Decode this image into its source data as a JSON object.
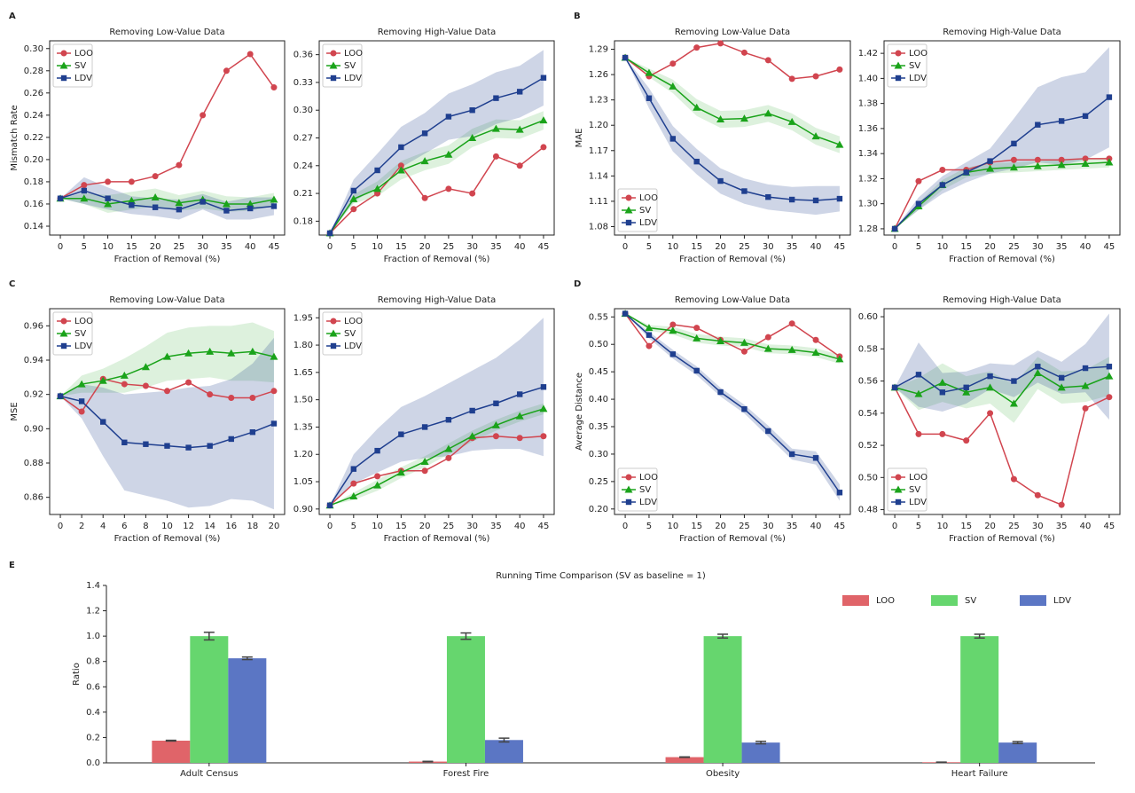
{
  "chart_data": [
    {
      "type": "line",
      "panel": "A",
      "title": "Removing Low-Value Data",
      "xlabel": "Fraction of Removal (%)",
      "ylabel": "Mismatch Rate",
      "legend": "upper left",
      "x": [
        0,
        5,
        10,
        15,
        20,
        25,
        30,
        35,
        40,
        45
      ],
      "xlim": [
        -2.25,
        47.25
      ],
      "xticks": [
        0,
        5,
        10,
        15,
        20,
        25,
        30,
        35,
        40,
        45
      ],
      "ylim": [
        0.132,
        0.307
      ],
      "yticks": [
        0.14,
        0.16,
        0.18,
        {
          "value": 0.2,
          "label": "0.20"
        },
        0.22,
        0.24,
        0.26,
        0.28,
        {
          "value": 0.3,
          "label": "0.30"
        }
      ],
      "series": [
        {
          "name": "LOO",
          "color": "#d1454f",
          "marker": "circle",
          "values": [
            0.165,
            0.177,
            0.18,
            0.18,
            0.185,
            0.195,
            0.24,
            0.28,
            0.295,
            0.265
          ]
        },
        {
          "name": "SV",
          "color": "#1aa31a",
          "marker": "triangle",
          "values": [
            0.165,
            0.165,
            0.16,
            0.163,
            0.166,
            0.161,
            0.164,
            0.16,
            0.16,
            0.164
          ],
          "errors": [
            0,
            0.005,
            0.008,
            0.008,
            0.008,
            0.007,
            0.008,
            0.007,
            0.006,
            0.006
          ]
        },
        {
          "name": "LDV",
          "color": "#1f3f8f",
          "marker": "square",
          "values": [
            0.165,
            0.172,
            0.165,
            0.159,
            0.157,
            0.155,
            0.162,
            0.154,
            0.156,
            0.158
          ],
          "errors": [
            0,
            0.012,
            0.01,
            0.008,
            0.008,
            0.009,
            0.007,
            0.008,
            0.01,
            0.008
          ]
        }
      ]
    },
    {
      "type": "line",
      "title": "Removing High-Value Data",
      "xlabel": "Fraction of Removal (%)",
      "legend": "upper left",
      "x": [
        0,
        5,
        10,
        15,
        20,
        25,
        30,
        35,
        40,
        45
      ],
      "xlim": [
        -2.25,
        47.25
      ],
      "xticks": [
        0,
        5,
        10,
        15,
        20,
        25,
        30,
        35,
        40,
        45
      ],
      "ylim": [
        0.165,
        0.375
      ],
      "yticks": [
        0.18,
        0.21,
        0.24,
        0.27,
        {
          "value": 0.3,
          "label": "0.30"
        },
        0.33,
        0.36
      ],
      "series": [
        {
          "name": "LOO",
          "color": "#d1454f",
          "marker": "circle",
          "values": [
            0.167,
            0.193,
            0.21,
            0.24,
            0.205,
            0.215,
            0.21,
            0.25,
            0.24,
            0.26
          ]
        },
        {
          "name": "SV",
          "color": "#1aa31a",
          "marker": "triangle",
          "values": [
            0.167,
            0.204,
            0.215,
            0.235,
            0.245,
            0.252,
            0.27,
            0.28,
            0.279,
            0.289
          ],
          "errors": [
            0,
            0.005,
            0.008,
            0.01,
            0.01,
            0.01,
            0.01,
            0.01,
            0.01,
            0.01
          ]
        },
        {
          "name": "LDV",
          "color": "#1f3f8f",
          "marker": "square",
          "values": [
            0.167,
            0.213,
            0.235,
            0.26,
            0.275,
            0.293,
            0.3,
            0.313,
            0.32,
            0.335
          ],
          "errors": [
            0,
            0.012,
            0.018,
            0.022,
            0.022,
            0.025,
            0.028,
            0.028,
            0.028,
            0.03
          ]
        }
      ]
    },
    {
      "type": "line",
      "panel": "B",
      "title": "Removing Low-Value Data",
      "xlabel": "Fraction of Removal (%)",
      "ylabel": "MAE",
      "legend": "lower left",
      "x": [
        0,
        5,
        10,
        15,
        20,
        25,
        30,
        35,
        40,
        45
      ],
      "xlim": [
        -2.25,
        47.25
      ],
      "xticks": [
        0,
        5,
        10,
        15,
        20,
        25,
        30,
        35,
        40,
        45
      ],
      "ylim": [
        1.07,
        1.3
      ],
      "yticks": [
        1.08,
        1.11,
        1.14,
        1.17,
        {
          "value": 1.2,
          "label": "1.20"
        },
        1.23,
        1.26,
        1.29
      ],
      "series": [
        {
          "name": "LOO",
          "color": "#d1454f",
          "marker": "circle",
          "values": [
            1.28,
            1.258,
            1.273,
            1.292,
            1.297,
            1.286,
            1.277,
            1.255,
            1.258,
            1.266
          ]
        },
        {
          "name": "SV",
          "color": "#1aa31a",
          "marker": "triangle",
          "values": [
            1.28,
            1.262,
            1.246,
            1.221,
            1.207,
            1.208,
            1.214,
            1.204,
            1.187,
            1.177
          ],
          "errors": [
            0,
            0.005,
            0.008,
            0.01,
            0.01,
            0.01,
            0.01,
            0.01,
            0.01,
            0.01
          ]
        },
        {
          "name": "LDV",
          "color": "#1f3f8f",
          "marker": "square",
          "values": [
            1.28,
            1.232,
            1.184,
            1.157,
            1.134,
            1.122,
            1.115,
            1.112,
            1.111,
            1.113
          ],
          "errors": [
            0,
            0.012,
            0.015,
            0.015,
            0.015,
            0.015,
            0.015,
            0.015,
            0.017,
            0.015
          ]
        }
      ]
    },
    {
      "type": "line",
      "title": "Removing High-Value Data",
      "xlabel": "Fraction of Removal (%)",
      "legend": "upper left",
      "x": [
        0,
        5,
        10,
        15,
        20,
        25,
        30,
        35,
        40,
        45
      ],
      "xlim": [
        -2.25,
        47.25
      ],
      "xticks": [
        0,
        5,
        10,
        15,
        20,
        25,
        30,
        35,
        40,
        45
      ],
      "ylim": [
        1.275,
        1.43
      ],
      "yticks": [
        1.28,
        {
          "value": 1.3,
          "label": "1.30"
        },
        1.32,
        1.34,
        1.36,
        1.38,
        {
          "value": 1.4,
          "label": "1.40"
        },
        1.42
      ],
      "series": [
        {
          "name": "LOO",
          "color": "#d1454f",
          "marker": "circle",
          "values": [
            1.28,
            1.318,
            1.327,
            1.327,
            1.333,
            1.335,
            1.335,
            1.335,
            1.336,
            1.336
          ]
        },
        {
          "name": "SV",
          "color": "#1aa31a",
          "marker": "triangle",
          "values": [
            1.28,
            1.298,
            1.315,
            1.325,
            1.328,
            1.329,
            1.33,
            1.331,
            1.332,
            1.333
          ],
          "errors": [
            0,
            0.003,
            0.004,
            0.004,
            0.004,
            0.004,
            0.004,
            0.004,
            0.004,
            0.004
          ]
        },
        {
          "name": "LDV",
          "color": "#1f3f8f",
          "marker": "square",
          "values": [
            1.28,
            1.3,
            1.315,
            1.325,
            1.334,
            1.348,
            1.363,
            1.366,
            1.37,
            1.385
          ],
          "errors": [
            0,
            0.005,
            0.007,
            0.008,
            0.01,
            0.02,
            0.03,
            0.035,
            0.035,
            0.04
          ]
        }
      ]
    },
    {
      "type": "line",
      "panel": "C",
      "title": "Removing Low-Value Data",
      "xlabel": "Fraction of Removal (%)",
      "ylabel": "MSE",
      "legend": "upper left",
      "x": [
        0,
        2,
        4,
        6,
        8,
        10,
        12,
        14,
        16,
        18,
        20
      ],
      "xlim": [
        -1,
        21
      ],
      "xticks": [
        0,
        2,
        4,
        6,
        8,
        10,
        12,
        14,
        16,
        18,
        20
      ],
      "ylim": [
        0.85,
        0.97
      ],
      "yticks": [
        0.86,
        0.88,
        {
          "value": 0.9,
          "label": "0.90"
        },
        0.92,
        0.94,
        0.96
      ],
      "series": [
        {
          "name": "LOO",
          "color": "#d1454f",
          "marker": "circle",
          "values": [
            0.919,
            0.91,
            0.929,
            0.926,
            0.925,
            0.922,
            0.927,
            0.92,
            0.918,
            0.918,
            0.922
          ]
        },
        {
          "name": "SV",
          "color": "#1aa31a",
          "marker": "triangle",
          "values": [
            0.919,
            0.926,
            0.928,
            0.931,
            0.936,
            0.942,
            0.944,
            0.945,
            0.944,
            0.945,
            0.942
          ],
          "errors": [
            0,
            0.005,
            0.007,
            0.01,
            0.012,
            0.014,
            0.015,
            0.015,
            0.016,
            0.017,
            0.015
          ]
        },
        {
          "name": "LDV",
          "color": "#1f3f8f",
          "marker": "square",
          "values": [
            0.919,
            0.916,
            0.904,
            0.892,
            0.891,
            0.89,
            0.889,
            0.89,
            0.894,
            0.898,
            0.903
          ],
          "errors": [
            0,
            0.01,
            0.02,
            0.028,
            0.03,
            0.032,
            0.035,
            0.035,
            0.035,
            0.04,
            0.05
          ]
        }
      ]
    },
    {
      "type": "line",
      "title": "Removing High-Value Data",
      "xlabel": "Fraction of Removal (%)",
      "legend": "upper left",
      "x": [
        0,
        5,
        10,
        15,
        20,
        25,
        30,
        35,
        40,
        45
      ],
      "xlim": [
        -2.25,
        47.25
      ],
      "xticks": [
        0,
        5,
        10,
        15,
        20,
        25,
        30,
        35,
        40,
        45
      ],
      "ylim": [
        0.87,
        2.0
      ],
      "yticks": [
        {
          "value": 0.9,
          "label": "0.90"
        },
        1.05,
        {
          "value": 1.2,
          "label": "1.20"
        },
        1.35,
        {
          "value": 1.5,
          "label": "1.50"
        },
        1.65,
        {
          "value": 1.8,
          "label": "1.80"
        },
        1.95
      ],
      "series": [
        {
          "name": "LOO",
          "color": "#d1454f",
          "marker": "circle",
          "values": [
            0.92,
            1.04,
            1.08,
            1.11,
            1.11,
            1.18,
            1.29,
            1.3,
            1.29,
            1.3
          ]
        },
        {
          "name": "SV",
          "color": "#1aa31a",
          "marker": "triangle",
          "values": [
            0.92,
            0.97,
            1.03,
            1.1,
            1.16,
            1.23,
            1.3,
            1.36,
            1.41,
            1.45
          ],
          "errors": [
            0,
            0.02,
            0.03,
            0.03,
            0.03,
            0.03,
            0.03,
            0.03,
            0.03,
            0.03
          ]
        },
        {
          "name": "LDV",
          "color": "#1f3f8f",
          "marker": "square",
          "values": [
            0.92,
            1.12,
            1.22,
            1.31,
            1.35,
            1.39,
            1.44,
            1.48,
            1.53,
            1.57
          ],
          "errors": [
            0,
            0.08,
            0.12,
            0.15,
            0.17,
            0.2,
            0.22,
            0.25,
            0.3,
            0.38
          ]
        }
      ]
    },
    {
      "type": "line",
      "panel": "D",
      "title": "Removing Low-Value Data",
      "xlabel": "Fraction of Removal (%)",
      "ylabel": "Average Distance",
      "legend": "lower left",
      "x": [
        0,
        5,
        10,
        15,
        20,
        25,
        30,
        35,
        40,
        45
      ],
      "xlim": [
        -2.25,
        47.25
      ],
      "xticks": [
        0,
        5,
        10,
        15,
        20,
        25,
        30,
        35,
        40,
        45
      ],
      "ylim": [
        0.19,
        0.565
      ],
      "yticks": [
        {
          "value": 0.2,
          "label": "0.20"
        },
        0.25,
        {
          "value": 0.3,
          "label": "0.30"
        },
        0.35,
        {
          "value": 0.4,
          "label": "0.40"
        },
        0.45,
        {
          "value": 0.5,
          "label": "0.50"
        },
        0.55
      ],
      "series": [
        {
          "name": "LOO",
          "color": "#d1454f",
          "marker": "circle",
          "values": [
            0.556,
            0.497,
            0.536,
            0.53,
            0.508,
            0.487,
            0.513,
            0.538,
            0.508,
            0.478
          ]
        },
        {
          "name": "SV",
          "color": "#1aa31a",
          "marker": "triangle",
          "values": [
            0.556,
            0.53,
            0.525,
            0.511,
            0.506,
            0.503,
            0.492,
            0.49,
            0.485,
            0.473
          ],
          "errors": [
            0,
            0.005,
            0.007,
            0.008,
            0.008,
            0.008,
            0.008,
            0.008,
            0.008,
            0.008
          ]
        },
        {
          "name": "LDV",
          "color": "#1f3f8f",
          "marker": "square",
          "values": [
            0.556,
            0.517,
            0.482,
            0.452,
            0.413,
            0.382,
            0.342,
            0.3,
            0.293,
            0.23
          ],
          "errors": [
            0,
            0.006,
            0.008,
            0.008,
            0.008,
            0.008,
            0.01,
            0.01,
            0.012,
            0.015
          ]
        }
      ]
    },
    {
      "type": "line",
      "title": "Removing High-Value Data",
      "xlabel": "Fraction of Removal (%)",
      "legend": "lower left",
      "x": [
        0,
        5,
        10,
        15,
        20,
        25,
        30,
        35,
        40,
        45
      ],
      "xlim": [
        -2.25,
        47.25
      ],
      "xticks": [
        0,
        5,
        10,
        15,
        20,
        25,
        30,
        35,
        40,
        45
      ],
      "ylim": [
        0.477,
        0.605
      ],
      "yticks": [
        0.48,
        {
          "value": 0.5,
          "label": "0.50"
        },
        0.52,
        0.54,
        0.56,
        0.58,
        {
          "value": 0.6,
          "label": "0.60"
        }
      ],
      "series": [
        {
          "name": "LOO",
          "color": "#d1454f",
          "marker": "circle",
          "values": [
            0.556,
            0.527,
            0.527,
            0.523,
            0.54,
            0.499,
            0.489,
            0.483,
            0.543,
            0.55
          ]
        },
        {
          "name": "SV",
          "color": "#1aa31a",
          "marker": "triangle",
          "values": [
            0.556,
            0.552,
            0.559,
            0.553,
            0.556,
            0.546,
            0.565,
            0.556,
            0.557,
            0.563
          ],
          "errors": [
            0,
            0.01,
            0.012,
            0.01,
            0.01,
            0.012,
            0.01,
            0.01,
            0.01,
            0.012
          ]
        },
        {
          "name": "LDV",
          "color": "#1f3f8f",
          "marker": "square",
          "values": [
            0.556,
            0.564,
            0.553,
            0.556,
            0.563,
            0.56,
            0.569,
            0.562,
            0.568,
            0.569
          ],
          "errors": [
            0,
            0.02,
            0.012,
            0.01,
            0.008,
            0.01,
            0.01,
            0.01,
            0.015,
            0.033
          ]
        }
      ]
    },
    {
      "type": "bar",
      "panel": "E",
      "title": "Running Time Comparison (SV as baseline = 1)",
      "ylabel": "Ratio",
      "legend": "upper right",
      "categories": [
        "Adult Census",
        "Forest Fire",
        "Obesity",
        "Heart Failure"
      ],
      "ylim": [
        0,
        1.4
      ],
      "yticks": [
        {
          "value": 0,
          "label": "0.0"
        },
        0.2,
        0.4,
        0.6,
        0.8,
        {
          "value": 1,
          "label": "1.0"
        },
        1.2,
        1.4
      ],
      "series": [
        {
          "name": "LOO",
          "color": "#e06469",
          "values": [
            0.175,
            0.01,
            0.045,
            0.005
          ],
          "errors": [
            0.003,
            0.002,
            0.002,
            0.001
          ]
        },
        {
          "name": "SV",
          "color": "#66d66e",
          "values": [
            1,
            1,
            1,
            1
          ],
          "errors": [
            0.03,
            0.025,
            0.015,
            0.015
          ]
        },
        {
          "name": "LDV",
          "color": "#5b76c4",
          "values": [
            0.825,
            0.18,
            0.16,
            0.16
          ],
          "errors": [
            0.01,
            0.015,
            0.01,
            0.008
          ]
        }
      ]
    }
  ]
}
